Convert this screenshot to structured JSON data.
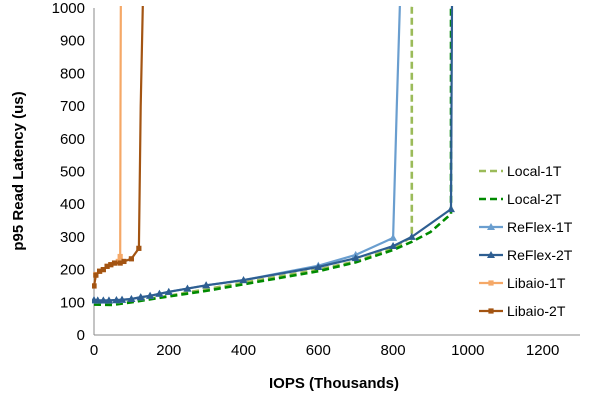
{
  "chart_data": {
    "type": "line",
    "title": "",
    "xlabel": "IOPS (Thousands)",
    "ylabel": "p95 Read Latency (us)",
    "xlim": [
      0,
      1300
    ],
    "ylim": [
      0,
      1000
    ],
    "x_ticks": [
      0,
      200,
      400,
      600,
      800,
      1000,
      1200
    ],
    "y_ticks": [
      0,
      100,
      200,
      300,
      400,
      500,
      600,
      700,
      800,
      900,
      1000
    ],
    "grid": false,
    "legend_position": "right",
    "series": [
      {
        "name": "Local-1T",
        "color": "#9bbb59",
        "dash": true,
        "marker": "none",
        "points": [
          [
            0,
            100
          ],
          [
            50,
            98
          ],
          [
            100,
            102
          ],
          [
            200,
            120
          ],
          [
            400,
            160
          ],
          [
            600,
            200
          ],
          [
            700,
            225
          ],
          [
            800,
            265
          ],
          [
            850,
            300
          ],
          [
            850,
            1000
          ],
          [
            860,
            1080
          ]
        ]
      },
      {
        "name": "Local-2T",
        "color": "#008a00",
        "dash": true,
        "marker": "none",
        "points": [
          [
            0,
            93
          ],
          [
            50,
            92
          ],
          [
            100,
            100
          ],
          [
            200,
            118
          ],
          [
            300,
            135
          ],
          [
            400,
            155
          ],
          [
            600,
            195
          ],
          [
            700,
            222
          ],
          [
            800,
            260
          ],
          [
            850,
            285
          ],
          [
            900,
            315
          ],
          [
            940,
            355
          ],
          [
            955,
            370
          ],
          [
            955,
            1080
          ]
        ]
      },
      {
        "name": "ReFlex-1T",
        "color": "#6a9ecf",
        "dash": false,
        "marker": "triangle",
        "points": [
          [
            0,
            105
          ],
          [
            10,
            105
          ],
          [
            25,
            105
          ],
          [
            40,
            105
          ],
          [
            60,
            106
          ],
          [
            75,
            107
          ],
          [
            100,
            110
          ],
          [
            125,
            115
          ],
          [
            150,
            120
          ],
          [
            175,
            126
          ],
          [
            200,
            132
          ],
          [
            250,
            142
          ],
          [
            300,
            152
          ],
          [
            400,
            168
          ],
          [
            600,
            212
          ],
          [
            700,
            245
          ],
          [
            800,
            297
          ],
          [
            810,
            700
          ],
          [
            820,
            1080
          ]
        ]
      },
      {
        "name": "ReFlex-2T",
        "color": "#2e5e91",
        "dash": false,
        "marker": "triangle",
        "points": [
          [
            0,
            107
          ],
          [
            10,
            106
          ],
          [
            25,
            106
          ],
          [
            40,
            106
          ],
          [
            60,
            107
          ],
          [
            75,
            108
          ],
          [
            100,
            110
          ],
          [
            125,
            116
          ],
          [
            150,
            120
          ],
          [
            175,
            126
          ],
          [
            200,
            132
          ],
          [
            250,
            142
          ],
          [
            300,
            152
          ],
          [
            400,
            168
          ],
          [
            600,
            208
          ],
          [
            700,
            235
          ],
          [
            800,
            272
          ],
          [
            850,
            300
          ],
          [
            955,
            385
          ],
          [
            958,
            1080
          ]
        ]
      },
      {
        "name": "Libaio-1T",
        "color": "#f5a867",
        "dash": false,
        "marker": "square",
        "points": [
          [
            0,
            150
          ],
          [
            5,
            185
          ],
          [
            15,
            195
          ],
          [
            25,
            200
          ],
          [
            35,
            210
          ],
          [
            45,
            215
          ],
          [
            55,
            220
          ],
          [
            65,
            225
          ],
          [
            70,
            240
          ],
          [
            71,
            700
          ],
          [
            72,
            1080
          ]
        ]
      },
      {
        "name": "Libaio-2T",
        "color": "#a35412",
        "dash": false,
        "marker": "square",
        "points": [
          [
            0,
            150
          ],
          [
            5,
            183
          ],
          [
            15,
            195
          ],
          [
            25,
            200
          ],
          [
            35,
            210
          ],
          [
            45,
            215
          ],
          [
            55,
            220
          ],
          [
            70,
            220
          ],
          [
            80,
            225
          ],
          [
            100,
            233
          ],
          [
            120,
            265
          ],
          [
            125,
            700
          ],
          [
            132,
            1080
          ]
        ]
      }
    ]
  }
}
